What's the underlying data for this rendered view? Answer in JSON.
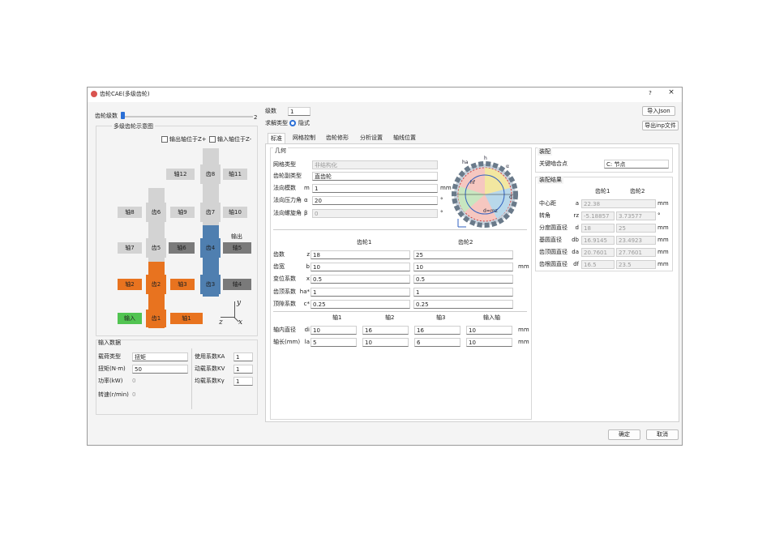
{
  "window": {
    "title": "齿轮CAE(多级齿轮)",
    "help": "?",
    "close": "×"
  },
  "stages": {
    "label": "齿轮级数",
    "max_label": "2"
  },
  "schematic": {
    "title": "多级齿轮示意图",
    "checkboxes": [
      "输出轴位于Z+",
      "输入轴位于Z-"
    ],
    "blocks": [
      {
        "label": "轴12",
        "color": "#d3d3d3"
      },
      {
        "label": "齿8",
        "color": "#d3d3d3"
      },
      {
        "label": "轴11",
        "color": "#d3d3d3"
      },
      {
        "label": "轴8",
        "color": "#d3d3d3"
      },
      {
        "label": "齿6",
        "color": "#d3d3d3"
      },
      {
        "label": "轴9",
        "color": "#d3d3d3"
      },
      {
        "label": "齿7",
        "color": "#d3d3d3"
      },
      {
        "label": "轴10",
        "color": "#d3d3d3"
      },
      {
        "label": "轴7",
        "color": "#d3d3d3"
      },
      {
        "label": "齿5",
        "color": "#d3d3d3"
      },
      {
        "label": "轴6",
        "color": "#7a7a7a"
      },
      {
        "label": "齿4",
        "color": "#4f7fb0"
      },
      {
        "label": "轴5",
        "color": "#7a7a7a"
      },
      {
        "label": "轴2",
        "color": "#e8731f"
      },
      {
        "label": "齿2",
        "color": "#e8731f"
      },
      {
        "label": "轴3",
        "color": "#e8731f"
      },
      {
        "label": "齿3",
        "color": "#4f7fb0"
      },
      {
        "label": "轴4",
        "color": "#7a7a7a"
      },
      {
        "label": "输入",
        "color": "#52c452"
      },
      {
        "label": "齿1",
        "color": "#e8731f"
      },
      {
        "label": "轴1",
        "color": "#e8731f"
      }
    ],
    "output_label": "输出",
    "axes": [
      "y",
      "z",
      "x"
    ]
  },
  "input_data": {
    "title": "输入数据",
    "left": [
      {
        "label": "载荷类型",
        "value": "扭矩"
      },
      {
        "label": "扭矩(N·m)",
        "value": 50
      },
      {
        "label": "功率(kW)",
        "value": 0
      },
      {
        "label": "转速(r/min)",
        "value": 0
      }
    ],
    "right": [
      {
        "label": "使用系数KA",
        "value": 1
      },
      {
        "label": "动载系数KV",
        "value": 1
      },
      {
        "label": "均载系数Kγ",
        "value": 1
      }
    ]
  },
  "header": {
    "stage_count_label": "级数",
    "stage_count": 1,
    "solve_label": "求解类型",
    "solve_value": "隐式",
    "buttons": [
      "导入Json",
      "导出inp文件"
    ]
  },
  "tabs": [
    "标准",
    "网格控制",
    "齿轮修形",
    "分析设置",
    "轴线位置"
  ],
  "geometry": {
    "title": "几何",
    "fields": [
      {
        "label": "网格类型",
        "value": "非结构化"
      },
      {
        "label": "齿轮副类型",
        "value": "直齿轮"
      },
      {
        "label": "法向模数",
        "symbol": "m",
        "value": 1,
        "unit": "mm"
      },
      {
        "label": "法向压力角",
        "symbol": "α",
        "value": 20,
        "unit": "°"
      },
      {
        "label": "法向螺旋角",
        "symbol": "β",
        "value": 0,
        "unit": "°"
      }
    ],
    "figure_labels": [
      "ha",
      "h",
      "α",
      "hf",
      "d",
      "d=mz"
    ],
    "gear_table": {
      "columns": [
        "齿轮1",
        "齿轮2"
      ],
      "rows": [
        {
          "label": "齿数",
          "symbol": "z",
          "values": [
            18,
            25
          ]
        },
        {
          "label": "齿宽",
          "symbol": "b",
          "values": [
            10,
            10
          ],
          "unit": "mm"
        },
        {
          "label": "变位系数",
          "symbol": "x",
          "values": [
            0.5,
            0.5
          ]
        },
        {
          "label": "齿顶系数",
          "symbol": "ha*",
          "values": [
            1,
            1
          ]
        },
        {
          "label": "顶隙系数",
          "symbol": "c*",
          "values": [
            0.25,
            0.25
          ]
        }
      ]
    },
    "shaft_table": {
      "columns": [
        "轴1",
        "轴2",
        "轴3",
        "输入轴"
      ],
      "rows": [
        {
          "label": "轴内直径",
          "symbol": "di",
          "values": [
            10,
            16,
            16,
            10
          ],
          "unit": "mm"
        },
        {
          "label": "轴长(mm)",
          "symbol": "la",
          "values": [
            5,
            10,
            6,
            10
          ],
          "unit": "mm"
        }
      ]
    }
  },
  "assembly": {
    "title": "装配",
    "key_point_label": "关键啮合点",
    "key_point": "C: 节点"
  },
  "assembly_result": {
    "title": "装配结果",
    "columns": [
      "齿轮1",
      "齿轮2"
    ],
    "rows": [
      {
        "label": "中心距",
        "symbol": "a",
        "values": [
          22.38
        ],
        "unit": "mm"
      },
      {
        "label": "转角",
        "symbol": "rz",
        "values": [
          -5.18857,
          3.73577
        ],
        "unit": "°"
      },
      {
        "label": "分度圆直径",
        "symbol": "d",
        "values": [
          18,
          25
        ],
        "unit": "mm"
      },
      {
        "label": "基圆直径",
        "symbol": "db",
        "values": [
          16.9145,
          23.4923
        ],
        "unit": "mm"
      },
      {
        "label": "齿顶圆直径",
        "symbol": "da",
        "values": [
          20.7601,
          27.7601
        ],
        "unit": "mm"
      },
      {
        "label": "齿根圆直径",
        "symbol": "df",
        "values": [
          16.5,
          23.5
        ],
        "unit": "mm"
      }
    ]
  },
  "footer": {
    "buttons": [
      "确定",
      "取消"
    ]
  }
}
